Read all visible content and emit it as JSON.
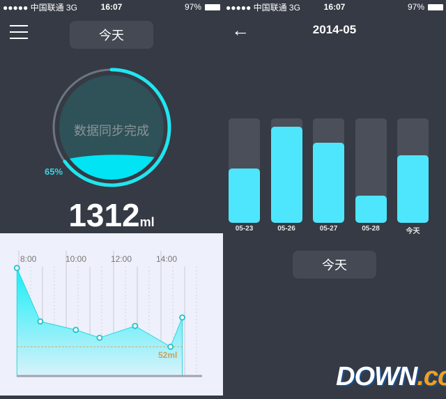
{
  "status_bar": {
    "carrier": "●●●●● 中国联通  3G",
    "time": "16:07",
    "battery": "97%"
  },
  "left": {
    "menu_icon": "hamburger-menu-icon",
    "today_button": "今天",
    "progress": {
      "percent_label": "65%",
      "fraction": 0.65,
      "status_text": "数据同步完成",
      "total_value": "1312",
      "total_unit": "ml"
    },
    "colors": {
      "accent": "#1fe6f0",
      "background": "#353a44",
      "panel": "#eef0fb"
    },
    "chart_data": {
      "type": "area",
      "x_tick_labels": [
        "8:00",
        "10:00",
        "12:00",
        "14:00"
      ],
      "x": [
        "7:55",
        "8:57",
        "10:31",
        "11:34",
        "13:08",
        "14:42",
        "15:13"
      ],
      "values": [
        192,
        97,
        82,
        68,
        89,
        52,
        104
      ],
      "unit": "ml",
      "reference_line": {
        "value": 52,
        "label": "52ml"
      },
      "grid": true
    }
  },
  "right": {
    "back_icon": "arrow-left-icon",
    "title": "2014-05",
    "today_button": "今天",
    "chart_data": {
      "type": "bar",
      "categories": [
        "05-23",
        "05-26",
        "05-27",
        "05-28",
        "今天"
      ],
      "values": [
        0.52,
        0.92,
        0.77,
        0.26,
        0.65
      ],
      "ylim": [
        0,
        1
      ]
    }
  },
  "watermark": {
    "text": "DOWN",
    "suffix": ".cc"
  }
}
